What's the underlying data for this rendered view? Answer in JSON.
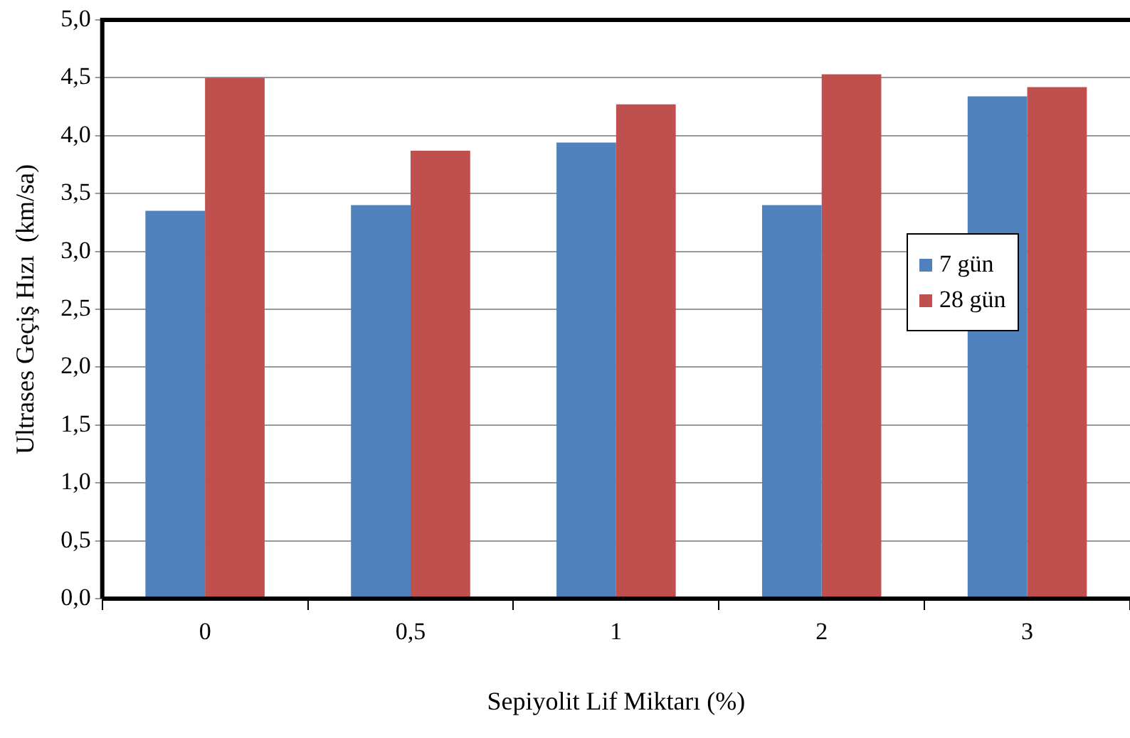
{
  "chart_data": {
    "type": "bar",
    "xlabel": "Sepiyolit Lif Miktarı (%)",
    "ylabel": "Ultrases Geçiş Hızı  (km/sa)",
    "categories": [
      "0",
      "0,5",
      "1",
      "2",
      "3"
    ],
    "series": [
      {
        "name": "7 gün",
        "color": "#4f81bd",
        "values": [
          3.35,
          3.4,
          3.94,
          3.4,
          4.34
        ]
      },
      {
        "name": "28 gün",
        "color": "#c0504d",
        "values": [
          4.5,
          3.87,
          4.27,
          4.53,
          4.42
        ]
      }
    ],
    "ylim": [
      0,
      5
    ],
    "yticks": [
      {
        "value": 0,
        "label": "0,0"
      },
      {
        "value": 0.5,
        "label": "0,5"
      },
      {
        "value": 1,
        "label": "1,0"
      },
      {
        "value": 1.5,
        "label": "1,5"
      },
      {
        "value": 2,
        "label": "2,0"
      },
      {
        "value": 2.5,
        "label": "2,5"
      },
      {
        "value": 3,
        "label": "3,0"
      },
      {
        "value": 3.5,
        "label": "3,5"
      },
      {
        "value": 4,
        "label": "4,0"
      },
      {
        "value": 4.5,
        "label": "4,5"
      },
      {
        "value": 5,
        "label": "5,0"
      }
    ],
    "grid": "y",
    "legend": "right"
  }
}
